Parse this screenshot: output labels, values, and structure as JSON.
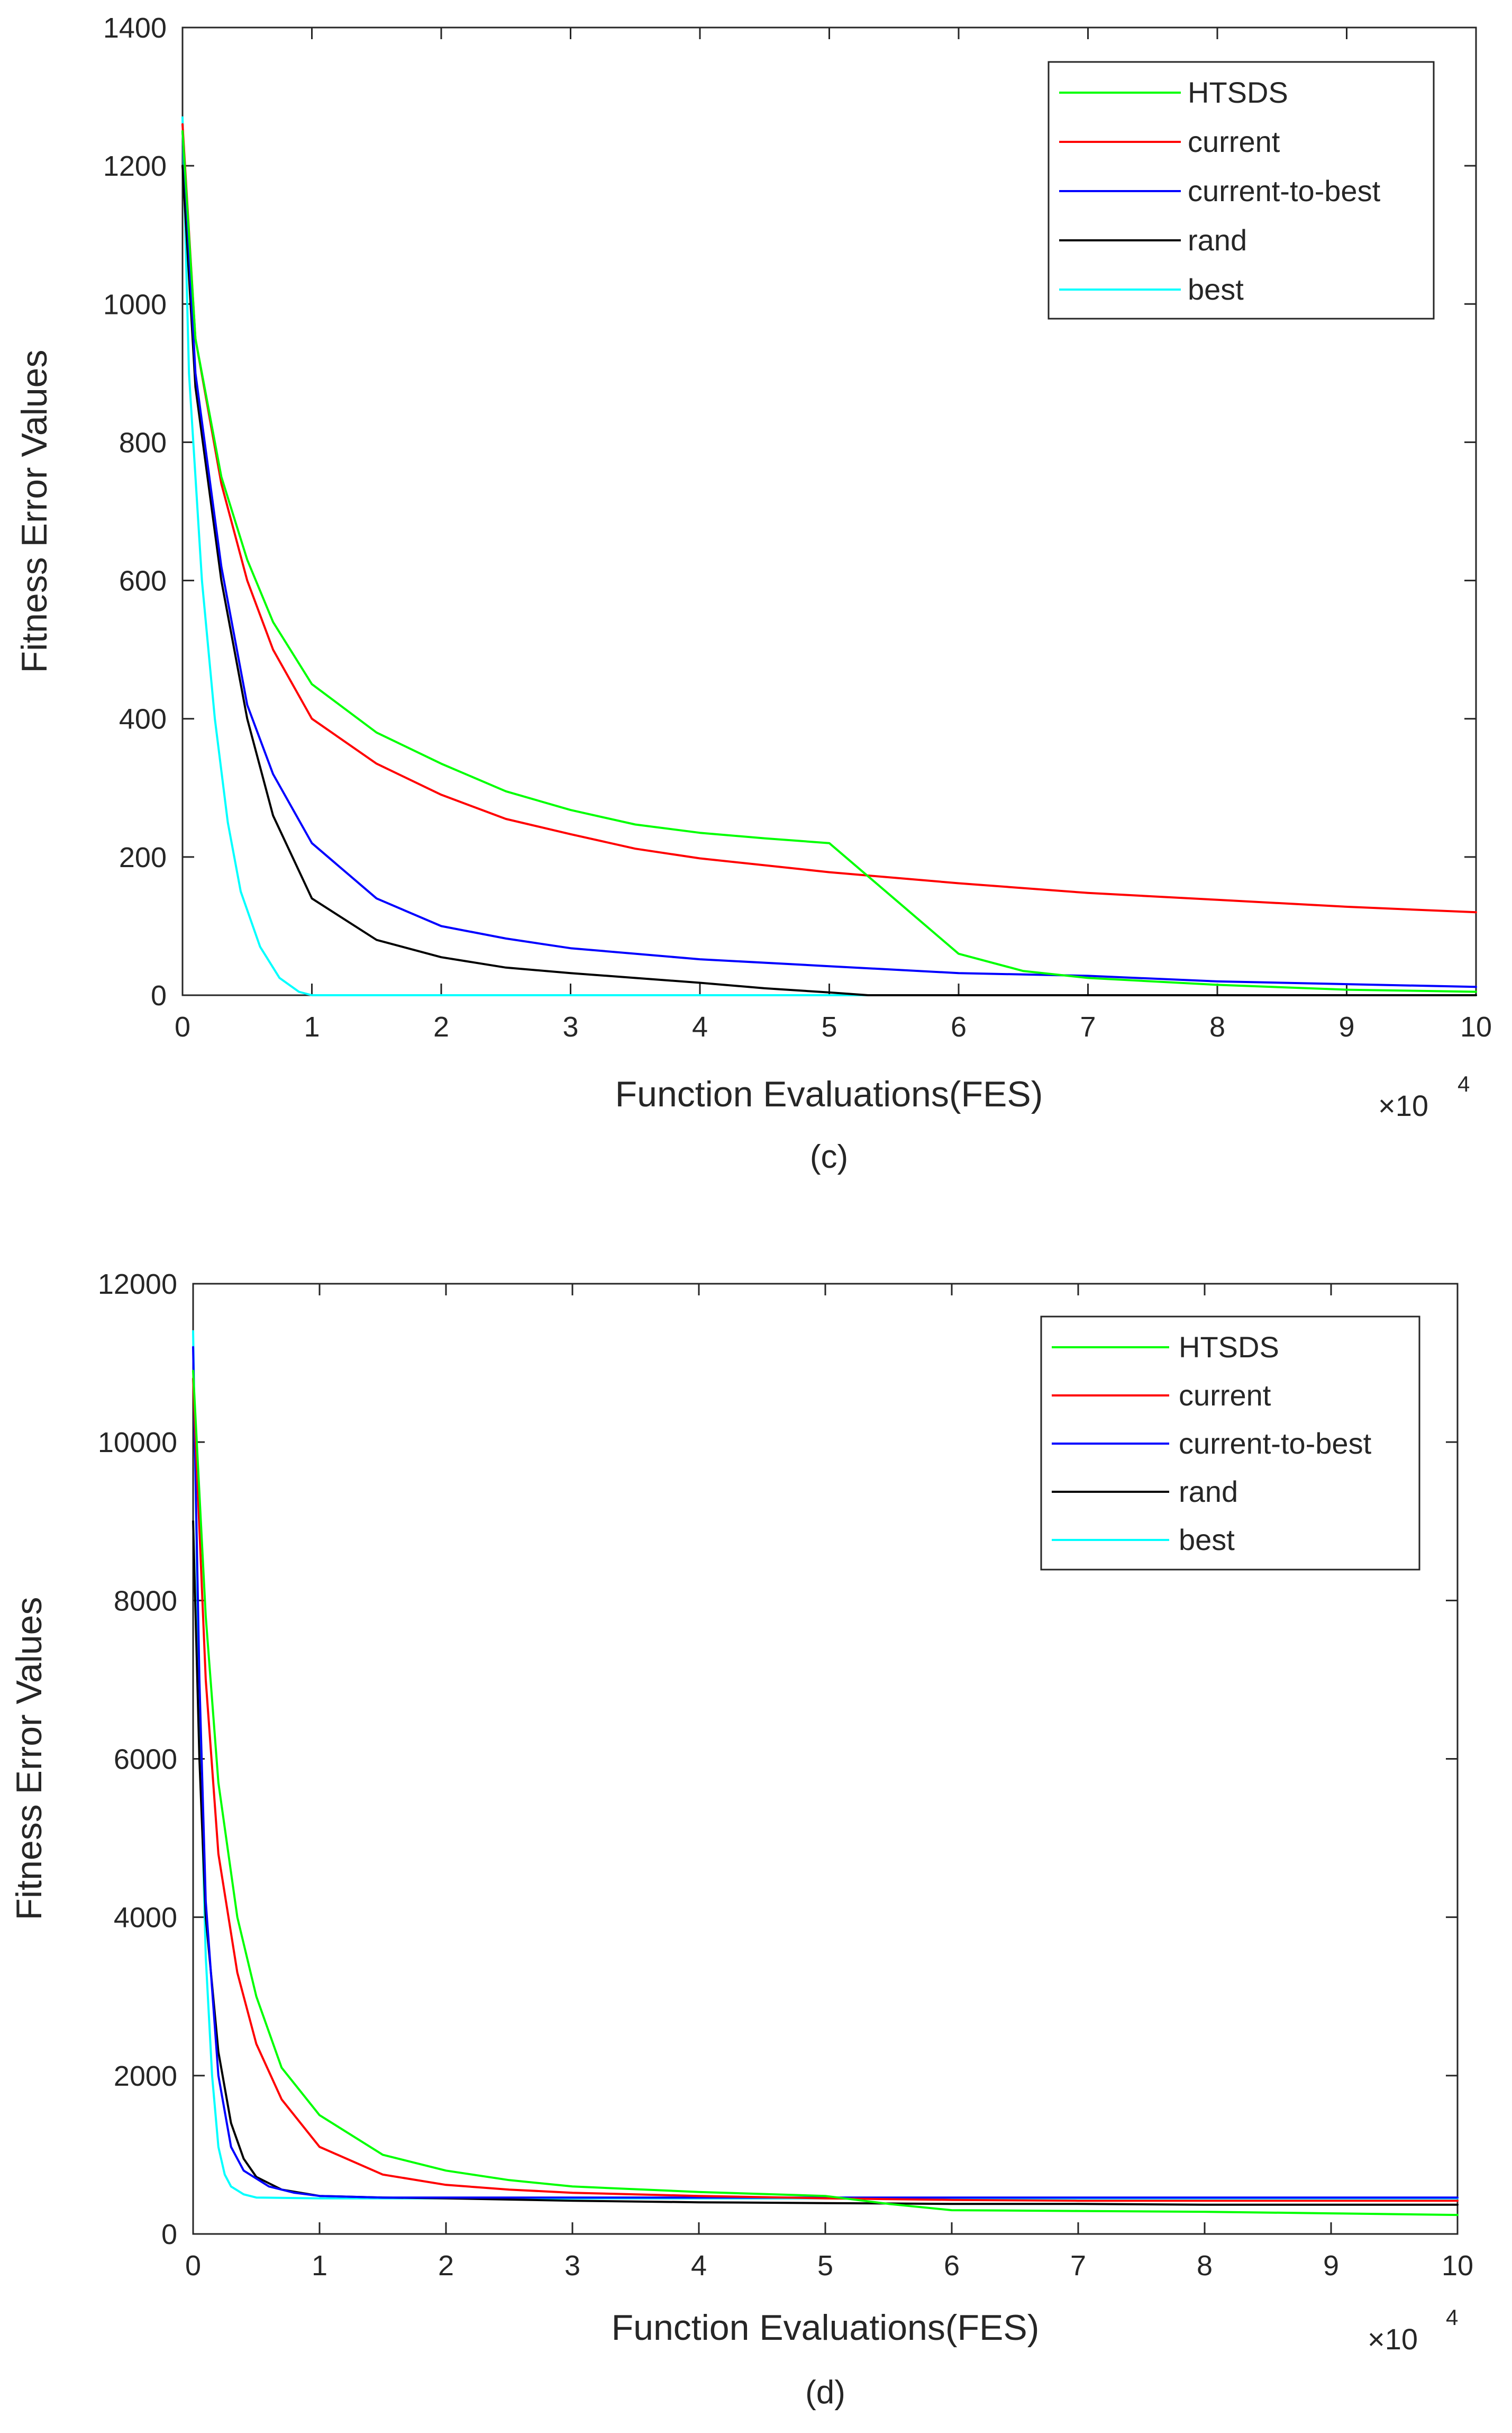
{
  "colors": {
    "HTSDS": "#00ff00",
    "current": "#ff0000",
    "current-to-best": "#0000ff",
    "rand": "#000000",
    "best": "#00ffff"
  },
  "chart_data": [
    {
      "type": "line",
      "caption": "(c)",
      "xlabel": "Function Evaluations(FES)",
      "ylabel": "Fitness Error Values",
      "x_multiplier": "×10",
      "x_multiplier_exp": "4",
      "xlim": [
        0,
        10
      ],
      "ylim": [
        0,
        1400
      ],
      "xticks": [
        0,
        1,
        2,
        3,
        4,
        5,
        6,
        7,
        8,
        9,
        10
      ],
      "yticks": [
        0,
        200,
        400,
        600,
        800,
        1000,
        1200,
        1400
      ],
      "legend_position": "top-right",
      "series": [
        {
          "name": "HTSDS",
          "x": [
            0,
            0.1,
            0.3,
            0.5,
            0.7,
            1,
            1.5,
            2,
            2.5,
            3,
            3.5,
            4,
            4.5,
            5,
            5.5,
            6,
            6.5,
            7,
            8,
            9,
            10
          ],
          "y": [
            1250,
            950,
            750,
            630,
            540,
            450,
            380,
            335,
            295,
            268,
            247,
            235,
            227,
            220,
            140,
            60,
            35,
            25,
            15,
            8,
            5
          ]
        },
        {
          "name": "current",
          "x": [
            0,
            0.1,
            0.3,
            0.5,
            0.7,
            1,
            1.5,
            2,
            2.5,
            3,
            3.5,
            4,
            4.5,
            5,
            6,
            7,
            8,
            9,
            10
          ],
          "y": [
            1260,
            950,
            740,
            600,
            500,
            400,
            335,
            290,
            255,
            233,
            212,
            198,
            188,
            178,
            162,
            148,
            138,
            128,
            120
          ]
        },
        {
          "name": "current-to-best",
          "x": [
            0,
            0.1,
            0.3,
            0.5,
            0.7,
            1,
            1.5,
            2,
            2.5,
            3,
            4,
            5,
            6,
            7,
            8,
            9,
            10
          ],
          "y": [
            1250,
            900,
            620,
            420,
            320,
            220,
            140,
            100,
            82,
            68,
            52,
            42,
            32,
            28,
            20,
            16,
            12
          ]
        },
        {
          "name": "rand",
          "x": [
            0,
            0.1,
            0.3,
            0.5,
            0.7,
            1,
            1.5,
            2,
            2.5,
            3,
            3.5,
            4,
            4.5,
            5,
            5.3,
            10
          ],
          "y": [
            1200,
            880,
            600,
            400,
            260,
            140,
            80,
            55,
            40,
            32,
            25,
            18,
            10,
            4,
            0,
            0
          ]
        },
        {
          "name": "best",
          "x": [
            0,
            0.05,
            0.15,
            0.25,
            0.35,
            0.45,
            0.6,
            0.75,
            0.9,
            1,
            10
          ],
          "y": [
            1270,
            900,
            600,
            400,
            250,
            150,
            70,
            25,
            5,
            0,
            0
          ]
        }
      ]
    },
    {
      "type": "line",
      "caption": "(d)",
      "xlabel": "Function Evaluations(FES)",
      "ylabel": "Fitness Error Values",
      "x_multiplier": "×10",
      "x_multiplier_exp": "4",
      "xlim": [
        0,
        10
      ],
      "ylim": [
        0,
        12000
      ],
      "xticks": [
        0,
        1,
        2,
        3,
        4,
        5,
        6,
        7,
        8,
        9,
        10
      ],
      "yticks": [
        0,
        2000,
        4000,
        6000,
        8000,
        10000,
        12000
      ],
      "legend_position": "top-right",
      "series": [
        {
          "name": "HTSDS",
          "x": [
            0,
            0.1,
            0.2,
            0.35,
            0.5,
            0.7,
            1,
            1.5,
            2,
            2.5,
            3,
            4,
            5,
            5.5,
            6,
            7,
            8,
            9,
            10
          ],
          "y": [
            10900,
            7800,
            5700,
            4000,
            3000,
            2100,
            1500,
            1000,
            800,
            680,
            600,
            530,
            480,
            380,
            300,
            290,
            280,
            260,
            240
          ]
        },
        {
          "name": "current",
          "x": [
            0,
            0.1,
            0.2,
            0.35,
            0.5,
            0.7,
            1,
            1.5,
            2,
            2.5,
            3,
            4,
            5,
            6,
            7,
            8,
            9,
            10
          ],
          "y": [
            10800,
            7000,
            4800,
            3300,
            2400,
            1700,
            1100,
            750,
            620,
            560,
            520,
            480,
            450,
            430,
            420,
            420,
            420,
            420
          ]
        },
        {
          "name": "current-to-best",
          "x": [
            0,
            0.05,
            0.1,
            0.2,
            0.3,
            0.4,
            0.6,
            0.8,
            1,
            1.5,
            2,
            3,
            5,
            7,
            10
          ],
          "y": [
            11200,
            7000,
            4200,
            2000,
            1100,
            800,
            600,
            520,
            480,
            460,
            460,
            460,
            460,
            460,
            460
          ]
        },
        {
          "name": "rand",
          "x": [
            0,
            0.05,
            0.1,
            0.2,
            0.3,
            0.4,
            0.5,
            0.7,
            1,
            1.5,
            2,
            3,
            4,
            5,
            6,
            7,
            8,
            9,
            10
          ],
          "y": [
            9000,
            6000,
            4000,
            2300,
            1400,
            950,
            720,
            560,
            480,
            460,
            450,
            420,
            400,
            390,
            380,
            380,
            370,
            370,
            370
          ]
        },
        {
          "name": "best",
          "x": [
            0,
            0.05,
            0.1,
            0.15,
            0.2,
            0.25,
            0.3,
            0.4,
            0.5,
            1,
            3,
            5,
            7,
            10
          ],
          "y": [
            11400,
            6500,
            3500,
            2000,
            1100,
            750,
            600,
            500,
            460,
            450,
            450,
            450,
            450,
            450
          ]
        }
      ]
    }
  ]
}
